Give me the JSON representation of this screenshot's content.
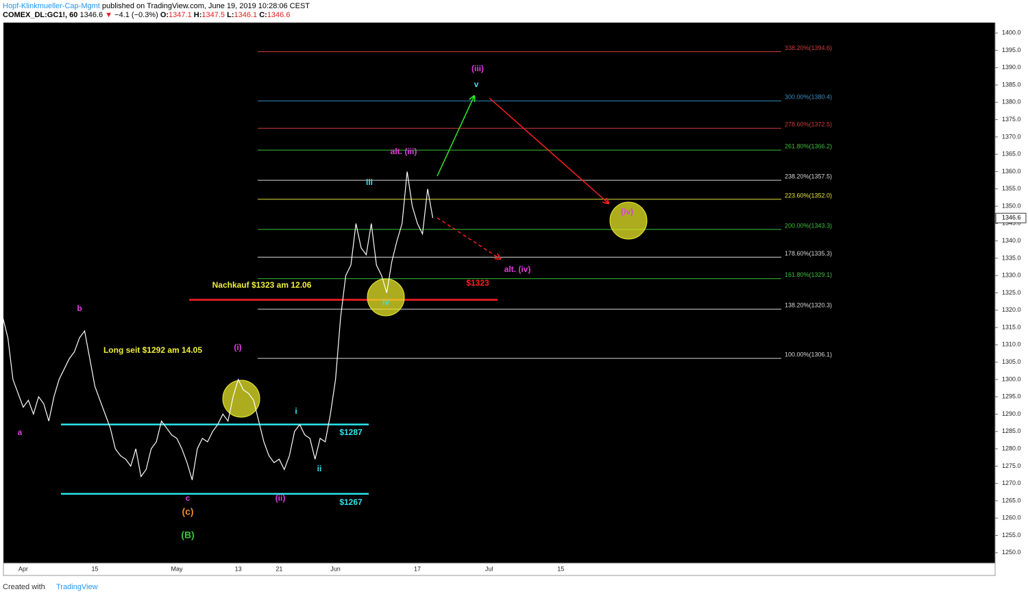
{
  "header": {
    "author": "Hopf-Klinkmueller-Cap-Mgmt",
    "published": "published on TradingView.com, June 19, 2019 10:28:06 CEST",
    "symbol": "COMEX_DL:GC1!, 60",
    "price": "1346.6",
    "arrow": "▼",
    "change": "−4.1 (−0.3%)",
    "open_label": "O:",
    "open": "1347.1",
    "high_label": "H:",
    "high": "1347.5",
    "low_label": "L:",
    "low": "1346.1",
    "close_label": "C:",
    "close": "1346.6"
  },
  "footer": {
    "text": "Created with",
    "brand": "TradingView"
  },
  "chart_data": {
    "type": "line",
    "categories": [
      null,
      null,
      null,
      null,
      "Apr",
      null,
      null,
      null,
      null,
      null,
      null,
      null,
      null,
      null,
      null,
      null,
      null,
      null,
      "15",
      null,
      null,
      null,
      null,
      null,
      null,
      null,
      null,
      null,
      null,
      null,
      null,
      null,
      null,
      null,
      "May",
      null,
      null,
      null,
      null,
      null,
      null,
      null,
      null,
      null,
      null,
      null,
      "13",
      null,
      null,
      null,
      null,
      null,
      null,
      null,
      "21",
      null,
      null,
      null,
      null,
      null,
      null,
      null,
      null,
      null,
      null,
      "Jun",
      null,
      null,
      null,
      null,
      null,
      null,
      null,
      null,
      null,
      null,
      null,
      null,
      null,
      null,
      null,
      "17",
      null,
      null,
      null,
      null,
      null,
      null,
      null,
      null,
      null,
      null,
      null,
      null,
      null,
      "Jul",
      null,
      null,
      null,
      null,
      null,
      null,
      null,
      null,
      null,
      null,
      null,
      null,
      null,
      "15"
    ],
    "values": [
      1318,
      1312,
      1300,
      1296,
      1292,
      1294,
      1290,
      1295,
      1293,
      1288,
      1295,
      1300,
      1303,
      1306,
      1308,
      1312,
      1314,
      1306,
      1298,
      1294,
      1290,
      1286,
      1280,
      1278,
      1277,
      1275,
      1280,
      1272,
      1274,
      1280,
      1282,
      1288,
      1286,
      1284,
      1283,
      1280,
      1276,
      1271,
      1280,
      1283,
      1282,
      1285,
      1287,
      1290,
      1288,
      1295,
      1300,
      1297,
      1296,
      1294,
      1288,
      1282,
      1278,
      1276,
      1277,
      1274,
      1278,
      1285,
      1287,
      1284,
      1283,
      1277,
      1283,
      1282,
      1290,
      1300,
      1318,
      1330,
      1333,
      1345,
      1338,
      1336,
      1345,
      1333,
      1330,
      1325,
      1334,
      1340,
      1345,
      1360,
      1350,
      1345,
      1342,
      1355,
      1346.6,
      null,
      null,
      null,
      null,
      null,
      null,
      null,
      null,
      null,
      null,
      null,
      null,
      null,
      null,
      null,
      null,
      null,
      null,
      null,
      null,
      null,
      null,
      null,
      null,
      null
    ],
    "color": "#ffffff",
    "ylim": [
      1247.0,
      1402.6
    ],
    "yticks": [
      {
        "value": 1250,
        "label": "1250.0"
      },
      {
        "value": 1255,
        "label": "1255.0"
      },
      {
        "value": 1260,
        "label": "1260.0"
      },
      {
        "value": 1265,
        "label": "1265.0"
      },
      {
        "value": 1270,
        "label": "1270.0"
      },
      {
        "value": 1275,
        "label": "1275.0"
      },
      {
        "value": 1280,
        "label": "1280.0"
      },
      {
        "value": 1285,
        "label": "1285.0"
      },
      {
        "value": 1290,
        "label": "1290.0"
      },
      {
        "value": 1295,
        "label": "1295.0"
      },
      {
        "value": 1300,
        "label": "1300.0"
      },
      {
        "value": 1305,
        "label": "1305.0"
      },
      {
        "value": 1310,
        "label": "1310.0"
      },
      {
        "value": 1315,
        "label": "1315.0"
      },
      {
        "value": 1320,
        "label": "1320.0"
      },
      {
        "value": 1325,
        "label": "1325.0"
      },
      {
        "value": 1330,
        "label": "1330.0"
      },
      {
        "value": 1335,
        "label": "1335.0"
      },
      {
        "value": 1340,
        "label": "1340.0"
      },
      {
        "value": 1345,
        "label": "1345.0"
      },
      {
        "value": 1350,
        "label": "1350.0"
      },
      {
        "value": 1355,
        "label": "1355.0"
      },
      {
        "value": 1360,
        "label": "1360.0"
      },
      {
        "value": 1365,
        "label": "1365.0"
      },
      {
        "value": 1370,
        "label": "1370.0"
      },
      {
        "value": 1375,
        "label": "1375.0"
      },
      {
        "value": 1380,
        "label": "1380.0"
      },
      {
        "value": 1385,
        "label": "1385.0"
      },
      {
        "value": 1390,
        "label": "1390.0"
      },
      {
        "value": 1395,
        "label": "1395.0"
      },
      {
        "value": 1400,
        "label": "1400.0"
      }
    ],
    "last_price": 1346.6,
    "fib_levels": [
      {
        "value": 1394.6,
        "label": "338.20%(1394.6)",
        "color": "#d23c3c"
      },
      {
        "value": 1380.4,
        "label": "300.00%(1380.4)",
        "color": "#3a8fc4"
      },
      {
        "value": 1372.5,
        "label": "278.60%(1372.5)",
        "color": "#d23c3c"
      },
      {
        "value": 1366.2,
        "label": "261.80%(1366.2)",
        "color": "#3bc23b"
      },
      {
        "value": 1357.5,
        "label": "238.20%(1357.5)",
        "color": "#d8d8d8"
      },
      {
        "value": 1352.0,
        "label": "223.60%(1352.0)",
        "color": "#e6e63c"
      },
      {
        "value": 1343.3,
        "label": "200.00%(1343.3)",
        "color": "#3bc23b"
      },
      {
        "value": 1335.3,
        "label": "178.60%(1335.3)",
        "color": "#d8d8d8"
      },
      {
        "value": 1329.1,
        "label": "161.80%(1329.1)",
        "color": "#3bc23b"
      },
      {
        "value": 1320.3,
        "label": "138.20%(1320.3)",
        "color": "#d8d8d8"
      },
      {
        "value": 1306.1,
        "label": "100.00%(1306.1)",
        "color": "#d8d8d8"
      }
    ],
    "levels": [
      {
        "value": 1287,
        "label": "$1287",
        "color": "#2ee6f0"
      },
      {
        "value": 1267,
        "label": "$1267",
        "color": "#2ee6f0"
      },
      {
        "value": 1323,
        "label": "$1323",
        "color": "#ff2020"
      }
    ],
    "annotations": [
      {
        "text": "a",
        "color": "#e03ce0"
      },
      {
        "text": "b",
        "color": "#e03ce0"
      },
      {
        "text": "c",
        "color": "#e03ce0"
      },
      {
        "text": "(c)",
        "color": "#f08c28"
      },
      {
        "text": "(B)",
        "color": "#3bc23b"
      },
      {
        "text": "(i)",
        "color": "#e03ce0"
      },
      {
        "text": "(ii)",
        "color": "#e03ce0"
      },
      {
        "text": "i",
        "color": "#2ee6f0"
      },
      {
        "text": "ii",
        "color": "#2ee6f0"
      },
      {
        "text": "iii",
        "color": "#2ee6f0"
      },
      {
        "text": "iv",
        "color": "#2ee6f0"
      },
      {
        "text": "v",
        "color": "#2ee6f0"
      },
      {
        "text": "(iii)",
        "color": "#e03ce0"
      },
      {
        "text": "alt. (iii)",
        "color": "#e03ce0"
      },
      {
        "text": "(iv)",
        "color": "#e03ce0"
      },
      {
        "text": "alt. (iv)",
        "color": "#e03ce0"
      },
      {
        "text": "Long seit $1292 am 14.05",
        "color": "#f0f03c"
      },
      {
        "text": "Nachkauf $1323 am 12.06",
        "color": "#f0f03c"
      }
    ]
  }
}
